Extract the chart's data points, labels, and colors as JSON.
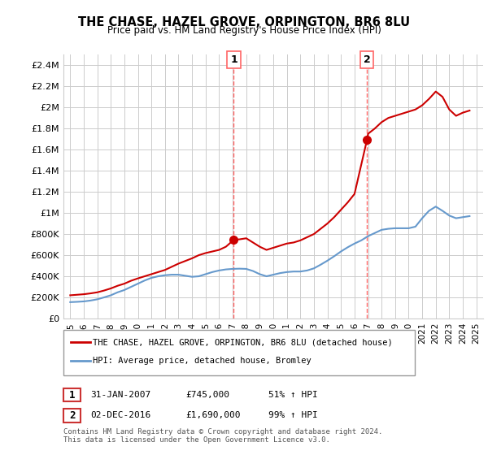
{
  "title": "THE CHASE, HAZEL GROVE, ORPINGTON, BR6 8LU",
  "subtitle": "Price paid vs. HM Land Registry's House Price Index (HPI)",
  "footer": "Contains HM Land Registry data © Crown copyright and database right 2024.\nThis data is licensed under the Open Government Licence v3.0.",
  "legend_line1": "THE CHASE, HAZEL GROVE, ORPINGTON, BR6 8LU (detached house)",
  "legend_line2": "HPI: Average price, detached house, Bromley",
  "annotation1_label": "1",
  "annotation1_date": "31-JAN-2007",
  "annotation1_price": "£745,000",
  "annotation1_hpi": "51% ↑ HPI",
  "annotation2_label": "2",
  "annotation2_date": "02-DEC-2016",
  "annotation2_price": "£1,690,000",
  "annotation2_hpi": "99% ↑ HPI",
  "red_color": "#cc0000",
  "blue_color": "#6699cc",
  "dashed_color": "#ff6666",
  "grid_color": "#cccccc",
  "background_color": "#ffffff",
  "years": [
    1995,
    1996,
    1997,
    1998,
    1999,
    2000,
    2001,
    2002,
    2003,
    2004,
    2005,
    2006,
    2007,
    2008,
    2009,
    2010,
    2011,
    2012,
    2013,
    2014,
    2015,
    2016,
    2017,
    2018,
    2019,
    2020,
    2021,
    2022,
    2023,
    2024,
    2025
  ],
  "red_line_x": [
    1995.0,
    1995.5,
    1996.0,
    1996.5,
    1997.0,
    1997.5,
    1998.0,
    1998.5,
    1999.0,
    1999.5,
    2000.0,
    2000.5,
    2001.0,
    2001.5,
    2002.0,
    2002.5,
    2003.0,
    2003.5,
    2004.0,
    2004.5,
    2005.0,
    2005.5,
    2006.0,
    2006.5,
    2007.083,
    2007.5,
    2008.0,
    2008.5,
    2009.0,
    2009.5,
    2010.0,
    2010.5,
    2011.0,
    2011.5,
    2012.0,
    2012.5,
    2013.0,
    2013.5,
    2014.0,
    2014.5,
    2015.0,
    2015.5,
    2016.0,
    2016.917,
    2017.0,
    2017.5,
    2018.0,
    2018.5,
    2019.0,
    2019.5,
    2020.0,
    2020.5,
    2021.0,
    2021.5,
    2022.0,
    2022.5,
    2023.0,
    2023.5,
    2024.0,
    2024.5
  ],
  "red_line_y": [
    220000,
    225000,
    230000,
    238000,
    248000,
    265000,
    285000,
    310000,
    330000,
    358000,
    380000,
    400000,
    420000,
    440000,
    460000,
    490000,
    520000,
    545000,
    570000,
    600000,
    620000,
    635000,
    650000,
    680000,
    745000,
    750000,
    760000,
    720000,
    680000,
    650000,
    670000,
    690000,
    710000,
    720000,
    740000,
    770000,
    800000,
    850000,
    900000,
    960000,
    1030000,
    1100000,
    1180000,
    1690000,
    1750000,
    1800000,
    1860000,
    1900000,
    1920000,
    1940000,
    1960000,
    1980000,
    2020000,
    2080000,
    2150000,
    2100000,
    1980000,
    1920000,
    1950000,
    1970000
  ],
  "blue_line_x": [
    1995.0,
    1995.5,
    1996.0,
    1996.5,
    1997.0,
    1997.5,
    1998.0,
    1998.5,
    1999.0,
    1999.5,
    2000.0,
    2000.5,
    2001.0,
    2001.5,
    2002.0,
    2002.5,
    2003.0,
    2003.5,
    2004.0,
    2004.5,
    2005.0,
    2005.5,
    2006.0,
    2006.5,
    2007.0,
    2007.5,
    2008.0,
    2008.5,
    2009.0,
    2009.5,
    2010.0,
    2010.5,
    2011.0,
    2011.5,
    2012.0,
    2012.5,
    2013.0,
    2013.5,
    2014.0,
    2014.5,
    2015.0,
    2015.5,
    2016.0,
    2016.5,
    2017.0,
    2017.5,
    2018.0,
    2018.5,
    2019.0,
    2019.5,
    2020.0,
    2020.5,
    2021.0,
    2021.5,
    2022.0,
    2022.5,
    2023.0,
    2023.5,
    2024.0,
    2024.5
  ],
  "blue_line_y": [
    155000,
    158000,
    162000,
    170000,
    182000,
    200000,
    220000,
    248000,
    270000,
    300000,
    330000,
    360000,
    385000,
    400000,
    410000,
    415000,
    415000,
    405000,
    395000,
    400000,
    420000,
    440000,
    455000,
    465000,
    470000,
    472000,
    470000,
    450000,
    420000,
    400000,
    415000,
    430000,
    440000,
    445000,
    445000,
    455000,
    475000,
    510000,
    548000,
    590000,
    635000,
    675000,
    710000,
    740000,
    780000,
    810000,
    840000,
    850000,
    855000,
    855000,
    855000,
    870000,
    950000,
    1020000,
    1060000,
    1020000,
    975000,
    950000,
    960000,
    970000
  ],
  "sale1_x": 2007.083,
  "sale1_y": 745000,
  "sale2_x": 2016.917,
  "sale2_y": 1690000,
  "ylim": [
    0,
    2500000
  ],
  "xlim": [
    1994.5,
    2025.5
  ],
  "yticks": [
    0,
    200000,
    400000,
    600000,
    800000,
    1000000,
    1200000,
    1400000,
    1600000,
    1800000,
    2000000,
    2200000,
    2400000
  ],
  "ytick_labels": [
    "£0",
    "£200K",
    "£400K",
    "£600K",
    "£800K",
    "£1M",
    "£1.2M",
    "£1.4M",
    "£1.6M",
    "£1.8M",
    "£2M",
    "£2.2M",
    "£2.4M"
  ],
  "xtick_years": [
    1995,
    1996,
    1997,
    1998,
    1999,
    2000,
    2001,
    2002,
    2003,
    2004,
    2005,
    2006,
    2007,
    2008,
    2009,
    2010,
    2011,
    2012,
    2013,
    2014,
    2015,
    2016,
    2017,
    2018,
    2019,
    2020,
    2021,
    2022,
    2023,
    2024,
    2025
  ]
}
